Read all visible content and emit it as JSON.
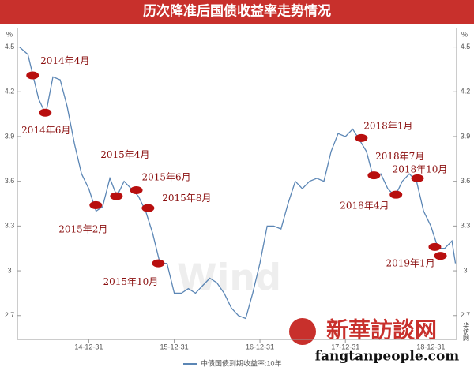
{
  "chart_data": {
    "type": "line",
    "title": "历次降准后国债收益率走势情况",
    "y_unit": "%",
    "xlim": [
      "14-03-01",
      "19-04-20"
    ],
    "xticks": [
      "14-12-31",
      "15-12-31",
      "16-12-31",
      "17-12-31",
      "18-12-31"
    ],
    "ylim": [
      2.54,
      4.63
    ],
    "yticks": [
      4.5,
      4.2,
      3.9,
      3.6,
      3.3,
      3.0,
      2.7
    ],
    "grid": false,
    "series": [
      {
        "name": "中债国债到期收益率:10年",
        "color": "#5b86b5",
        "x": [
          "14-03-10",
          "14-04-15",
          "14-05-31",
          "14-06-30",
          "14-07-31",
          "14-08-31",
          "14-09-30",
          "14-10-31",
          "14-11-30",
          "14-12-31",
          "15-01-31",
          "15-02-28",
          "15-03-31",
          "15-04-30",
          "15-05-31",
          "15-06-30",
          "15-07-31",
          "15-08-31",
          "15-09-30",
          "15-10-31",
          "15-11-30",
          "15-12-31",
          "16-01-31",
          "16-02-29",
          "16-03-31",
          "16-04-30",
          "16-05-31",
          "16-06-30",
          "16-07-31",
          "16-08-31",
          "16-09-30",
          "16-10-31",
          "16-11-30",
          "16-12-31",
          "17-01-31",
          "17-02-28",
          "17-03-31",
          "17-04-30",
          "17-05-31",
          "17-06-30",
          "17-07-31",
          "17-08-31",
          "17-09-30",
          "17-10-31",
          "17-11-30",
          "17-12-31",
          "18-01-31",
          "18-02-28",
          "18-03-31",
          "18-04-30",
          "18-05-31",
          "18-06-30",
          "18-07-31",
          "18-08-31",
          "18-09-30",
          "18-10-31",
          "18-11-30",
          "18-12-31",
          "19-01-31",
          "19-02-28",
          "19-03-31",
          "19-04-15"
        ],
        "values": [
          4.5,
          4.45,
          4.15,
          4.05,
          4.3,
          4.28,
          4.1,
          3.85,
          3.65,
          3.55,
          3.4,
          3.43,
          3.62,
          3.5,
          3.6,
          3.55,
          3.5,
          3.4,
          3.25,
          3.05,
          3.05,
          2.85,
          2.85,
          2.88,
          2.85,
          2.9,
          2.95,
          2.92,
          2.85,
          2.75,
          2.7,
          2.68,
          2.85,
          3.05,
          3.3,
          3.3,
          3.28,
          3.45,
          3.6,
          3.55,
          3.6,
          3.62,
          3.6,
          3.8,
          3.92,
          3.9,
          3.95,
          3.88,
          3.8,
          3.62,
          3.65,
          3.55,
          3.5,
          3.6,
          3.65,
          3.6,
          3.4,
          3.3,
          3.15,
          3.15,
          3.2,
          3.05
        ]
      }
    ],
    "annotations": [
      {
        "label": "2014年4月",
        "x": "14-05-05",
        "y": 4.31
      },
      {
        "label": "2014年6月",
        "x": "14-06-28",
        "y": 4.06
      },
      {
        "label": "2015年4月",
        "x": "15-04-28",
        "y": 3.5
      },
      {
        "label": "2015年6月",
        "x": "15-07-22",
        "y": 3.54
      },
      {
        "label": "2015年2月",
        "x": "15-01-30",
        "y": 3.44
      },
      {
        "label": "2015年8月",
        "x": "15-09-10",
        "y": 3.42
      },
      {
        "label": "2015年10月",
        "x": "15-10-24",
        "y": 3.05
      },
      {
        "label": "2018年1月",
        "x": "18-03-09",
        "y": 3.89
      },
      {
        "label": "2018年4月",
        "x": "18-05-02",
        "y": 3.64
      },
      {
        "label": "2018年7月",
        "x": "18-08-04",
        "y": 3.51
      },
      {
        "label": "2018年10月",
        "x": "18-11-04",
        "y": 3.62
      },
      {
        "label": "2019年1月",
        "x": "19-02-10",
        "y": 3.1
      },
      {
        "label": null,
        "x": "19-01-17",
        "y": 3.16
      }
    ],
    "watermark": "Wind",
    "logo": {
      "name": "新華訪談网",
      "url": "fangtanpeople.com",
      "mark": "华访网"
    }
  }
}
